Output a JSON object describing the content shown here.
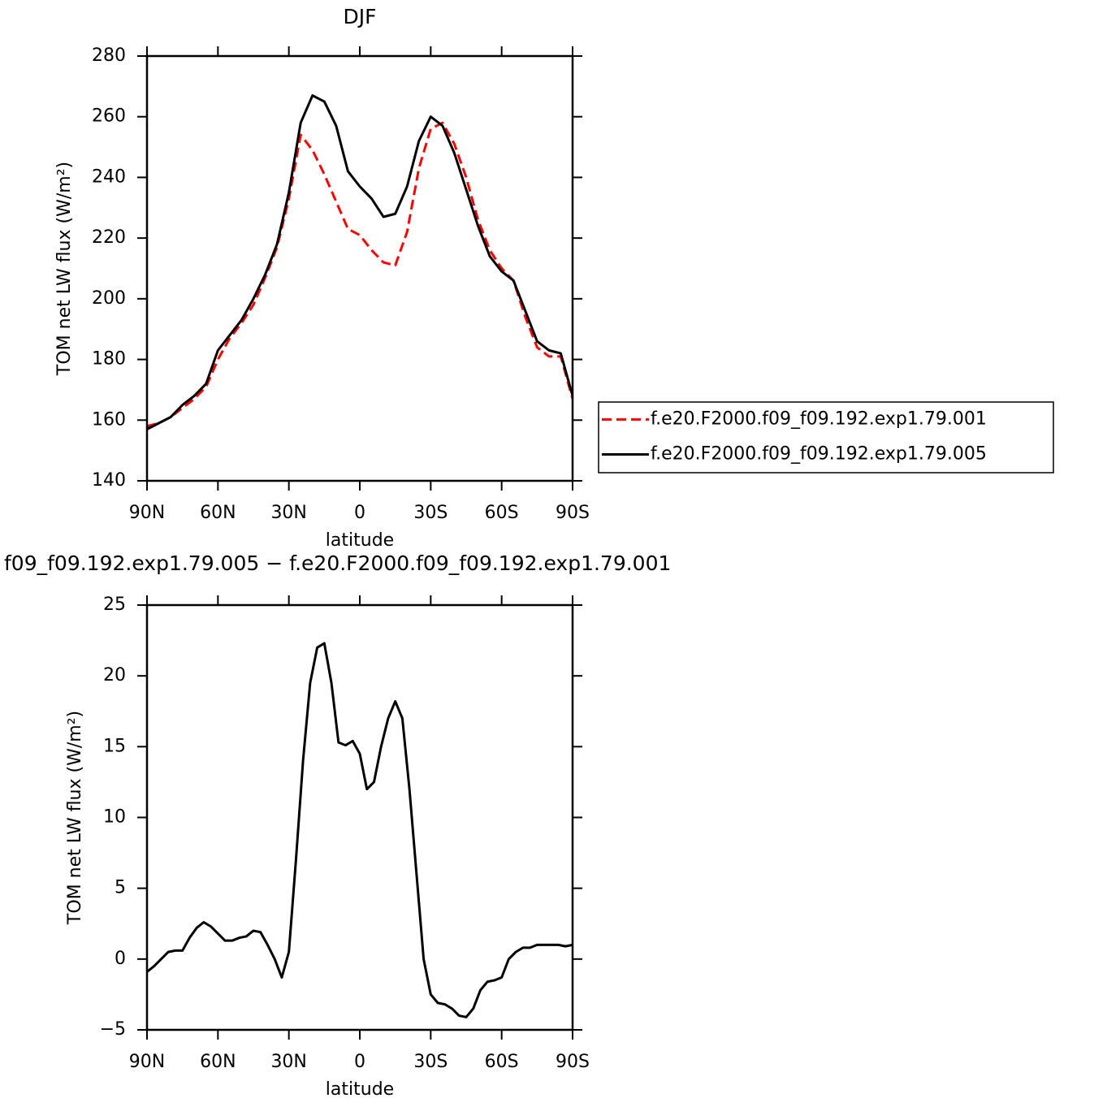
{
  "chart_data": [
    {
      "type": "line",
      "title": "DJF",
      "xlabel": "latitude",
      "ylabel": "TOM net LW flux (W/m²)",
      "x": [
        90,
        85,
        80,
        75,
        70,
        65,
        60,
        55,
        50,
        45,
        40,
        35,
        30,
        25,
        20,
        15,
        10,
        5,
        0,
        -5,
        -10,
        -15,
        -20,
        -25,
        -30,
        -35,
        -40,
        -45,
        -50,
        -55,
        -60,
        -65,
        -70,
        -75,
        -80,
        -85,
        -90
      ],
      "series": [
        {
          "name": "f.e20.F2000.f09_f09.192.exp1.79.001",
          "color": "#ff0000",
          "dash": true,
          "values": [
            158,
            159,
            161,
            164,
            167,
            171,
            180,
            187,
            192,
            198,
            207,
            217,
            233,
            254,
            249,
            241,
            232,
            223,
            221,
            216,
            212,
            211,
            222,
            243,
            256,
            258,
            251,
            240,
            226,
            216,
            210,
            206,
            194,
            184,
            181,
            181,
            167
          ]
        },
        {
          "name": "f.e20.F2000.f09_f09.192.exp1.79.005",
          "color": "#000000",
          "dash": false,
          "values": [
            157,
            159,
            161,
            165,
            168,
            172,
            183,
            188,
            193,
            200,
            208,
            218,
            235,
            258,
            267,
            265,
            257,
            242,
            237,
            233,
            227,
            228,
            237,
            252,
            260,
            257,
            248,
            236,
            224,
            214,
            209,
            206,
            196,
            186,
            183,
            182,
            168
          ]
        }
      ],
      "xlim": [
        90,
        -90
      ],
      "xticks": [
        {
          "value": 90,
          "label": "90N"
        },
        {
          "value": 60,
          "label": "60N"
        },
        {
          "value": 30,
          "label": "30N"
        },
        0,
        {
          "value": -30,
          "label": "30S"
        },
        {
          "value": -60,
          "label": "60S"
        },
        {
          "value": -90,
          "label": "90S"
        }
      ],
      "ylim": [
        140,
        280
      ],
      "yticks": [
        140,
        160,
        180,
        200,
        220,
        240,
        260,
        280
      ],
      "legend": "right"
    },
    {
      "type": "line",
      "title": "f09_f09.192.exp1.79.005 − f.e20.F2000.f09_f09.192.exp1.79.001",
      "xlabel": "latitude",
      "ylabel": "TOM net LW flux (W/m²)",
      "x": [
        90,
        87,
        84,
        81,
        78,
        75,
        72,
        69,
        66,
        63,
        60,
        57,
        54,
        51,
        48,
        45,
        42,
        39,
        36,
        33,
        30,
        27,
        24,
        21,
        18,
        15,
        12,
        9,
        6,
        3,
        0,
        -3,
        -6,
        -9,
        -12,
        -15,
        -18,
        -21,
        -24,
        -27,
        -30,
        -33,
        -36,
        -39,
        -42,
        -45,
        -48,
        -51,
        -54,
        -57,
        -60,
        -63,
        -66,
        -69,
        -72,
        -75,
        -78,
        -81,
        -84,
        -87,
        -90
      ],
      "values": [
        -0.9,
        -0.5,
        0,
        0.5,
        0.6,
        0.6,
        1.5,
        2.2,
        2.6,
        2.3,
        1.8,
        1.3,
        1.3,
        1.5,
        1.6,
        2.0,
        1.9,
        1.0,
        0,
        -1.3,
        0.5,
        7,
        14,
        19.5,
        22,
        22.3,
        19.5,
        15.3,
        15.1,
        15.4,
        14.5,
        12,
        12.5,
        15,
        17,
        18.2,
        17,
        12,
        6,
        0,
        -2.5,
        -3.1,
        -3.2,
        -3.5,
        -4.0,
        -4.1,
        -3.5,
        -2.2,
        -1.6,
        -1.5,
        -1.3,
        0,
        0.5,
        0.8,
        0.8,
        1.0,
        1.0,
        1.0,
        1.0,
        0.9,
        1.0
      ],
      "color": "#000000",
      "xlim": [
        90,
        -90
      ],
      "xticks": [
        {
          "value": 90,
          "label": "90N"
        },
        {
          "value": 60,
          "label": "60N"
        },
        {
          "value": 30,
          "label": "30N"
        },
        0,
        {
          "value": -30,
          "label": "30S"
        },
        {
          "value": -60,
          "label": "60S"
        },
        {
          "value": -90,
          "label": "90S"
        }
      ],
      "ylim": [
        -5,
        25
      ],
      "yticks": [
        {
          "value": -5,
          "label": "−5"
        },
        0,
        5,
        10,
        15,
        20,
        25
      ]
    }
  ]
}
